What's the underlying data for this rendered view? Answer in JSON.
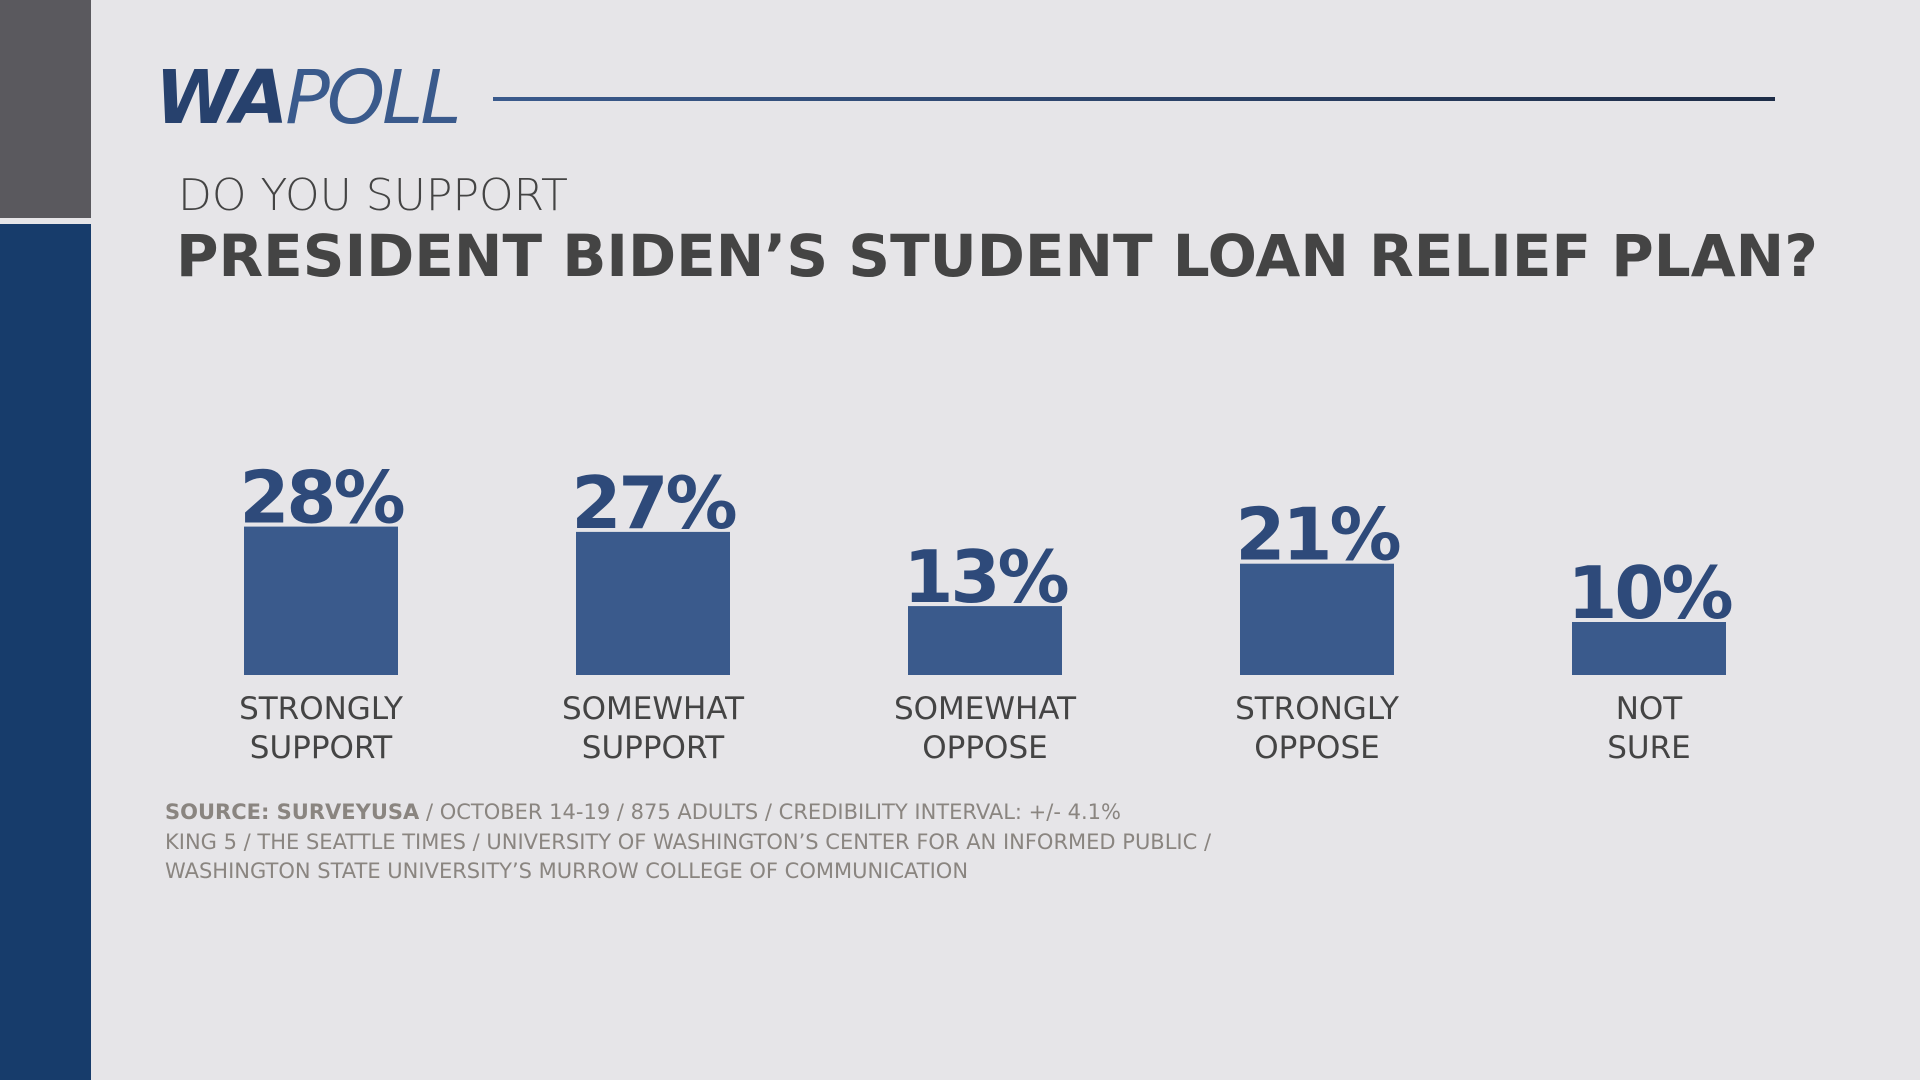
{
  "brand": {
    "bold": "WA",
    "light": "POLL"
  },
  "chart_data": {
    "type": "bar",
    "subtitle": "DO YOU SUPPORT",
    "title": "PRESIDENT BIDEN’S STUDENT LOAN RELIEF PLAN?",
    "categories": [
      "STRONGLY SUPPORT",
      "SOMEWHAT SUPPORT",
      "SOMEWHAT OPPOSE",
      "STRONGLY OPPOSE",
      "NOT SURE"
    ],
    "values": [
      28,
      27,
      13,
      21,
      10
    ],
    "value_labels": [
      "28%",
      "27%",
      "13%",
      "21%",
      "10%"
    ],
    "color": "#3a5a8c",
    "ylim": [
      0,
      40
    ]
  },
  "footer": {
    "source_label": "SOURCE: SURVEYUSA",
    "source_details": "/ OCTOBER 14-19 / 875 ADULTS / CREDIBILITY INTERVAL: +/- 4.1%",
    "line2": "KING 5 / THE SEATTLE TIMES / UNIVERSITY OF WASHINGTON’S CENTER FOR AN INFORMED PUBLIC /",
    "line3": "WASHINGTON STATE UNIVERSITY’S MURROW COLLEGE OF COMMUNICATION"
  }
}
